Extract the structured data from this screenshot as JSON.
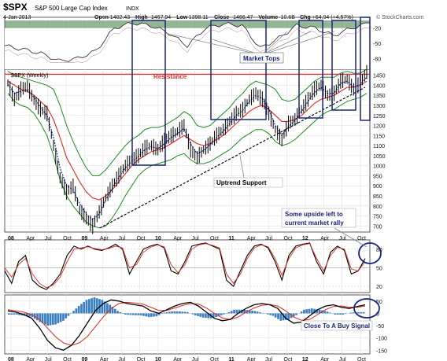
{
  "header": {
    "symbol": "$SPX",
    "name": "S&P 500 Large Cap Index",
    "exchange": "INDX",
    "date": "4-Jan-2013",
    "ohlc": [
      {
        "label": "Open",
        "value": "1402.43"
      },
      {
        "label": "High",
        "value": "1467.94"
      },
      {
        "label": "Low",
        "value": "1398.11"
      },
      {
        "label": "Close",
        "value": "1466.47"
      },
      {
        "label": "Volume",
        "value": "10.6B"
      },
      {
        "label": "Chg",
        "value": "+64.04 (+4.57%)"
      }
    ],
    "watermark": "© StockCharts.com",
    "panel_label": "$SPX (Weekly)"
  },
  "annotations": {
    "market_tops": "Market Tops",
    "resistance": "Resistance",
    "uptrend": "Uptrend Support",
    "upside": [
      "Some upside left to",
      "current market rally"
    ],
    "buy_signal": "Close To  A Buy Signal"
  },
  "colors": {
    "price": "#000000",
    "ma_red": "#e0281e",
    "ma_blue": "#1c2ea8",
    "bollinger": "#1f8a1f",
    "resistance": "#e03030",
    "box": "#1a237e",
    "osc_fill": "#3c7a3c",
    "histogram": "#3a7ec0",
    "callout": "#1a237e",
    "text": "#111111"
  },
  "chart_data": [
    {
      "type": "line",
      "name": "top-oscillator",
      "y_ticks": [
        "-20",
        "-50",
        "-80"
      ],
      "x": [
        "2008-01",
        "2008-04",
        "2008-07",
        "2008-10",
        "2009-01",
        "2009-04",
        "2009-07",
        "2009-10",
        "2010-01",
        "2010-04",
        "2010-07",
        "2010-10",
        "2011-01",
        "2011-04",
        "2011-07",
        "2011-10",
        "2012-01",
        "2012-04",
        "2012-07",
        "2012-10",
        "2013-01"
      ],
      "values": [
        -55,
        -62,
        -70,
        -85,
        -80,
        -65,
        -20,
        -10,
        -15,
        -30,
        -55,
        -20,
        -12,
        -15,
        -60,
        -40,
        -15,
        -20,
        -35,
        -20,
        -10
      ]
    },
    {
      "type": "line",
      "name": "spx-weekly",
      "y_ticks": [
        1450,
        1400,
        1350,
        1300,
        1250,
        1200,
        1150,
        1100,
        1050,
        1000,
        950,
        900,
        850,
        800,
        750,
        700
      ],
      "ylim": [
        670,
        1480
      ],
      "x_ticks": [
        "08",
        "Apr",
        "Jul",
        "Oct",
        "09",
        "Apr",
        "Jul",
        "Oct",
        "10",
        "Apr",
        "Jul",
        "Oct",
        "11",
        "Apr",
        "Jul",
        "Oct",
        "12",
        "Apr",
        "Jul",
        "Oct"
      ],
      "price": [
        1411,
        1330,
        1380,
        1395,
        1325,
        1280,
        1260,
        1100,
        940,
        870,
        900,
        780,
        740,
        700,
        770,
        840,
        900,
        950,
        1000,
        1030,
        1050,
        1090,
        1100,
        1080,
        1125,
        1150,
        1170,
        1200,
        1080,
        1040,
        1080,
        1110,
        1150,
        1180,
        1220,
        1260,
        1280,
        1330,
        1360,
        1330,
        1260,
        1180,
        1130,
        1210,
        1230,
        1280,
        1330,
        1380,
        1400,
        1350,
        1360,
        1420,
        1430,
        1380,
        1410,
        1466
      ],
      "ma_red": [
        1420,
        1400,
        1380,
        1370,
        1350,
        1320,
        1290,
        1230,
        1140,
        1040,
        980,
        920,
        870,
        840,
        830,
        850,
        880,
        920,
        960,
        1000,
        1030,
        1050,
        1070,
        1080,
        1090,
        1110,
        1130,
        1150,
        1130,
        1110,
        1100,
        1110,
        1130,
        1150,
        1180,
        1210,
        1240,
        1270,
        1290,
        1300,
        1280,
        1250,
        1220,
        1220,
        1230,
        1250,
        1280,
        1310,
        1330,
        1340,
        1350,
        1370,
        1390,
        1390,
        1400,
        1420
      ],
      "ma_blue": [
        1405,
        1360,
        1370,
        1380,
        1340,
        1290,
        1250,
        1140,
        990,
        900,
        880,
        810,
        760,
        730,
        760,
        830,
        890,
        940,
        990,
        1020,
        1045,
        1080,
        1095,
        1085,
        1110,
        1140,
        1160,
        1185,
        1110,
        1060,
        1075,
        1105,
        1140,
        1170,
        1210,
        1250,
        1275,
        1320,
        1350,
        1335,
        1280,
        1200,
        1150,
        1195,
        1225,
        1270,
        1320,
        1365,
        1390,
        1360,
        1360,
        1410,
        1420,
        1390,
        1405,
        1440
      ],
      "bb_upper": [
        1470,
        1450,
        1440,
        1430,
        1420,
        1410,
        1400,
        1380,
        1300,
        1200,
        1120,
        1050,
        990,
        950,
        950,
        980,
        1020,
        1060,
        1100,
        1130,
        1150,
        1180,
        1190,
        1190,
        1200,
        1220,
        1240,
        1270,
        1250,
        1200,
        1190,
        1200,
        1230,
        1260,
        1290,
        1330,
        1360,
        1400,
        1420,
        1410,
        1400,
        1380,
        1330,
        1320,
        1330,
        1360,
        1390,
        1420,
        1440,
        1440,
        1440,
        1460,
        1470,
        1460,
        1460,
        1480
      ],
      "bb_lower": [
        1360,
        1320,
        1300,
        1290,
        1260,
        1210,
        1150,
        1050,
        930,
        850,
        800,
        760,
        720,
        700,
        690,
        700,
        740,
        790,
        850,
        900,
        950,
        980,
        1000,
        1010,
        1020,
        1030,
        1050,
        1060,
        1030,
        1010,
        1010,
        1020,
        1040,
        1060,
        1080,
        1110,
        1140,
        1160,
        1180,
        1180,
        1160,
        1120,
        1100,
        1110,
        1130,
        1160,
        1190,
        1220,
        1250,
        1270,
        1280,
        1300,
        1320,
        1330,
        1340,
        1360
      ],
      "resistance": 1455
    },
    {
      "type": "line",
      "name": "middle-oscillator",
      "y_ticks": [
        80,
        50,
        20
      ],
      "ylim": [
        10,
        95
      ],
      "values": [
        45,
        25,
        60,
        70,
        30,
        20,
        15,
        25,
        40,
        70,
        85,
        80,
        85,
        80,
        78,
        82,
        88,
        80,
        40,
        60,
        80,
        85,
        88,
        82,
        45,
        40,
        60,
        85,
        88,
        90,
        85,
        80,
        30,
        20,
        45,
        70,
        85,
        88,
        82,
        60,
        30,
        70,
        85,
        88,
        90,
        60,
        40,
        75,
        85,
        78,
        40,
        45,
        65
      ],
      "signal": [
        50,
        35,
        55,
        65,
        40,
        25,
        18,
        22,
        35,
        60,
        80,
        82,
        84,
        81,
        79,
        81,
        85,
        82,
        50,
        55,
        75,
        83,
        87,
        84,
        55,
        42,
        55,
        80,
        87,
        89,
        86,
        82,
        40,
        25,
        40,
        65,
        82,
        87,
        84,
        65,
        38,
        65,
        82,
        87,
        89,
        65,
        45,
        70,
        83,
        80,
        48,
        45,
        60
      ]
    },
    {
      "type": "bar",
      "name": "macd-panel",
      "y_ticks": [
        50,
        0,
        -50,
        -100,
        -150
      ],
      "ylim": [
        -165,
        75
      ],
      "macd": [
        10,
        5,
        -5,
        -20,
        -60,
        -110,
        -140,
        -150,
        -130,
        -90,
        -40,
        10,
        40,
        55,
        50,
        40,
        35,
        30,
        10,
        0,
        15,
        30,
        40,
        45,
        30,
        5,
        -20,
        -30,
        -25,
        0,
        20,
        35,
        40,
        35,
        20,
        -20,
        -40,
        -35,
        -10,
        15,
        30,
        35,
        25,
        20,
        28,
        35
      ],
      "signal": [
        15,
        10,
        5,
        -5,
        -25,
        -60,
        -95,
        -120,
        -130,
        -120,
        -95,
        -55,
        -15,
        20,
        40,
        45,
        42,
        38,
        25,
        12,
        12,
        22,
        32,
        40,
        38,
        22,
        0,
        -18,
        -25,
        -15,
        5,
        22,
        33,
        36,
        30,
        10,
        -15,
        -28,
        -25,
        -5,
        15,
        28,
        30,
        25,
        25,
        30
      ],
      "histogram": [
        -5,
        -5,
        -10,
        -15,
        -35,
        -50,
        -45,
        -30,
        0,
        30,
        55,
        65,
        55,
        35,
        10,
        -5,
        -7,
        -8,
        -15,
        -12,
        3,
        8,
        8,
        5,
        -8,
        -17,
        -20,
        -12,
        0,
        15,
        15,
        13,
        7,
        -1,
        -10,
        -30,
        -25,
        -7,
        15,
        20,
        15,
        7,
        -5,
        -5,
        3,
        5
      ]
    }
  ]
}
